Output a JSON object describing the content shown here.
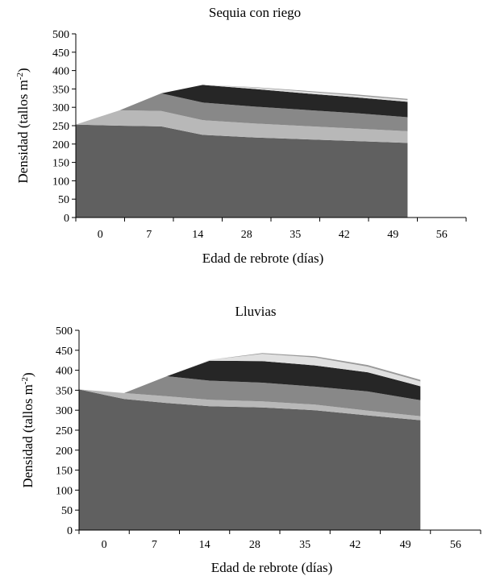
{
  "chart_data": [
    {
      "type": "area",
      "stacked": true,
      "title": "Sequia con riego",
      "xlabel": "Edad de rebrote (días)",
      "ylabel": "Densidad  (tallos m",
      "ylabel_sup": "-2",
      "ylabel_close": ")",
      "categories": [
        "0",
        "7",
        "14",
        "28",
        "35",
        "42",
        "49",
        "56"
      ],
      "x": [
        0,
        0.9,
        1.75,
        2.6,
        3.65,
        4.7,
        5.75,
        6.8
      ],
      "ylim": [
        0,
        500
      ],
      "yticks": [
        "0",
        "50",
        "100",
        "150",
        "200",
        "250",
        "300",
        "350",
        "400",
        "450",
        "500"
      ],
      "series": [
        {
          "color": "#606060",
          "values": [
            253,
            250,
            248,
            225,
            218,
            213,
            208,
            203
          ]
        },
        {
          "color": "#b8b8b8",
          "values": [
            0,
            42,
            42,
            40,
            38,
            36,
            34,
            32
          ]
        },
        {
          "color": "#888888",
          "values": [
            0,
            0,
            48,
            48,
            46,
            44,
            42,
            38
          ]
        },
        {
          "color": "#262626",
          "values": [
            0,
            0,
            0,
            48,
            48,
            45,
            43,
            42
          ]
        },
        {
          "color": "#e0e0e0",
          "values": [
            0,
            0,
            0,
            0,
            4,
            5,
            5,
            5
          ]
        },
        {
          "color": "#999999",
          "values": [
            0,
            0,
            0,
            0,
            1,
            2,
            3,
            3
          ]
        }
      ]
    },
    {
      "type": "area",
      "stacked": true,
      "title": "Lluvias",
      "xlabel": "Edad de rebrote (días)",
      "ylabel": "Densidad  (tallos m",
      "ylabel_sup": "-2",
      "ylabel_close": ")",
      "categories": [
        "0",
        "7",
        "14",
        "28",
        "35",
        "42",
        "49",
        "56"
      ],
      "x": [
        0,
        0.9,
        1.75,
        2.6,
        3.65,
        4.7,
        5.75,
        6.8
      ],
      "ylim": [
        0,
        500
      ],
      "yticks": [
        "0",
        "50",
        "100",
        "150",
        "200",
        "250",
        "300",
        "350",
        "400",
        "450",
        "500"
      ],
      "series": [
        {
          "color": "#606060",
          "values": [
            352,
            328,
            318,
            310,
            307,
            300,
            287,
            275
          ]
        },
        {
          "color": "#b8b8b8",
          "values": [
            0,
            15,
            17,
            16,
            15,
            14,
            12,
            10
          ]
        },
        {
          "color": "#888888",
          "values": [
            0,
            0,
            50,
            48,
            47,
            45,
            48,
            40
          ]
        },
        {
          "color": "#262626",
          "values": [
            0,
            0,
            0,
            50,
            54,
            53,
            48,
            35
          ]
        },
        {
          "color": "#e0e0e0",
          "values": [
            0,
            0,
            0,
            2,
            18,
            20,
            14,
            12
          ]
        },
        {
          "color": "#999999",
          "values": [
            0,
            0,
            0,
            0,
            2,
            3,
            4,
            4
          ]
        }
      ]
    }
  ]
}
